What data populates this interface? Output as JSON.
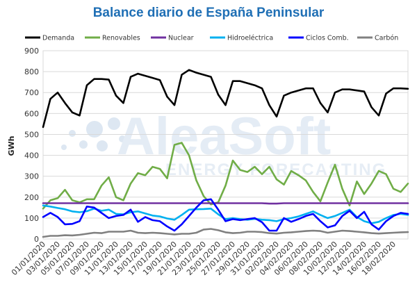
{
  "chart_data": {
    "type": "line",
    "title": "Balance diario de España Peninsular",
    "ylabel": "GWh",
    "xlabel": "",
    "ylim": [
      0,
      900
    ],
    "yticks": [
      0,
      100,
      200,
      300,
      400,
      500,
      600,
      700,
      800,
      900
    ],
    "grid": true,
    "legend_position": "top",
    "watermark": {
      "main": "AleaSoft",
      "sub": "ENERGY FORECASTING"
    },
    "x": [
      "01/01/2020",
      "02/01/2020",
      "03/01/2020",
      "04/01/2020",
      "05/01/2020",
      "06/01/2020",
      "07/01/2020",
      "08/01/2020",
      "09/01/2020",
      "10/01/2020",
      "11/01/2020",
      "12/01/2020",
      "13/01/2020",
      "14/01/2020",
      "15/01/2020",
      "16/01/2020",
      "17/01/2020",
      "18/01/2020",
      "19/01/2020",
      "20/01/2020",
      "21/01/2020",
      "22/01/2020",
      "23/01/2020",
      "24/01/2020",
      "25/01/2020",
      "26/01/2020",
      "27/01/2020",
      "28/01/2020",
      "29/01/2020",
      "30/01/2020",
      "31/01/2020",
      "01/02/2020",
      "02/02/2020",
      "03/02/2020",
      "04/02/2020",
      "05/02/2020",
      "06/02/2020",
      "07/02/2020",
      "08/02/2020",
      "09/02/2020",
      "10/02/2020",
      "11/02/2020",
      "12/02/2020",
      "13/02/2020",
      "14/02/2020",
      "15/02/2020",
      "16/02/2020",
      "17/02/2020",
      "18/02/2020",
      "19/02/2020",
      "20/02/2020"
    ],
    "x_tick_labels": [
      "01/01/2020",
      "03/01/2020",
      "05/01/2020",
      "07/01/2020",
      "09/01/2020",
      "11/01/2020",
      "13/01/2020",
      "15/01/2020",
      "17/01/2020",
      "19/01/2020",
      "21/01/2020",
      "23/01/2020",
      "25/01/2020",
      "27/01/2020",
      "29/01/2020",
      "31/01/2020",
      "02/02/2020",
      "04/02/2020",
      "06/02/2020",
      "08/02/2020",
      "10/02/2020",
      "12/02/2020",
      "14/02/2020",
      "16/02/2020",
      "18/02/2020"
    ],
    "series": [
      {
        "name": "Demanda",
        "color": "#000000",
        "values": [
          535,
          670,
          700,
          650,
          605,
          590,
          735,
          765,
          765,
          762,
          685,
          650,
          775,
          790,
          780,
          770,
          760,
          680,
          640,
          785,
          808,
          795,
          785,
          775,
          690,
          640,
          755,
          755,
          745,
          735,
          720,
          640,
          585,
          685,
          700,
          710,
          720,
          720,
          650,
          605,
          700,
          715,
          715,
          710,
          705,
          630,
          590,
          695,
          720,
          720,
          718
        ]
      },
      {
        "name": "Renovables",
        "color": "#70ad47",
        "values": [
          145,
          185,
          195,
          235,
          185,
          175,
          190,
          190,
          255,
          295,
          200,
          185,
          265,
          315,
          305,
          345,
          335,
          290,
          450,
          460,
          400,
          280,
          205,
          165,
          175,
          255,
          375,
          330,
          320,
          345,
          310,
          345,
          285,
          260,
          325,
          305,
          280,
          225,
          180,
          270,
          355,
          240,
          160,
          275,
          215,
          265,
          325,
          310,
          240,
          225,
          265
        ]
      },
      {
        "name": "Nuclear",
        "color": "#7030a0",
        "values": [
          171,
          171,
          171,
          171,
          171,
          171,
          171,
          171,
          171,
          171,
          171,
          171,
          171,
          171,
          171,
          171,
          171,
          171,
          171,
          171,
          171,
          171,
          171,
          171,
          171,
          171,
          171,
          171,
          171,
          171,
          171,
          169,
          169,
          171,
          171,
          171,
          171,
          171,
          171,
          171,
          171,
          171,
          171,
          171,
          171,
          171,
          171,
          171,
          171,
          171,
          171
        ]
      },
      {
        "name": "Hidroeléctrica",
        "color": "#00b0f0",
        "values": [
          160,
          155,
          148,
          142,
          132,
          128,
          133,
          145,
          135,
          140,
          120,
          118,
          128,
          132,
          122,
          112,
          108,
          98,
          92,
          115,
          140,
          142,
          143,
          145,
          118,
          95,
          100,
          95,
          92,
          96,
          92,
          90,
          85,
          95,
          100,
          108,
          120,
          132,
          115,
          100,
          110,
          125,
          140,
          105,
          85,
          75,
          82,
          100,
          115,
          120,
          115
        ]
      },
      {
        "name": "Ciclos Comb.",
        "color": "#0000ff",
        "values": [
          105,
          125,
          105,
          70,
          72,
          85,
          155,
          150,
          125,
          100,
          110,
          115,
          140,
          82,
          105,
          90,
          85,
          60,
          40,
          70,
          110,
          150,
          185,
          190,
          140,
          85,
          95,
          90,
          95,
          100,
          80,
          40,
          40,
          100,
          82,
          95,
          110,
          120,
          85,
          55,
          65,
          110,
          135,
          100,
          130,
          70,
          45,
          85,
          110,
          125,
          120
        ]
      },
      {
        "name": "Carbón",
        "color": "#808080",
        "values": [
          10,
          15,
          15,
          18,
          17,
          20,
          25,
          30,
          28,
          35,
          35,
          35,
          40,
          30,
          28,
          30,
          28,
          25,
          22,
          25,
          25,
          30,
          45,
          48,
          42,
          32,
          28,
          30,
          35,
          35,
          33,
          28,
          26,
          30,
          32,
          35,
          38,
          40,
          38,
          30,
          35,
          40,
          38,
          35,
          32,
          28,
          26,
          28,
          30,
          32,
          33
        ]
      }
    ]
  }
}
